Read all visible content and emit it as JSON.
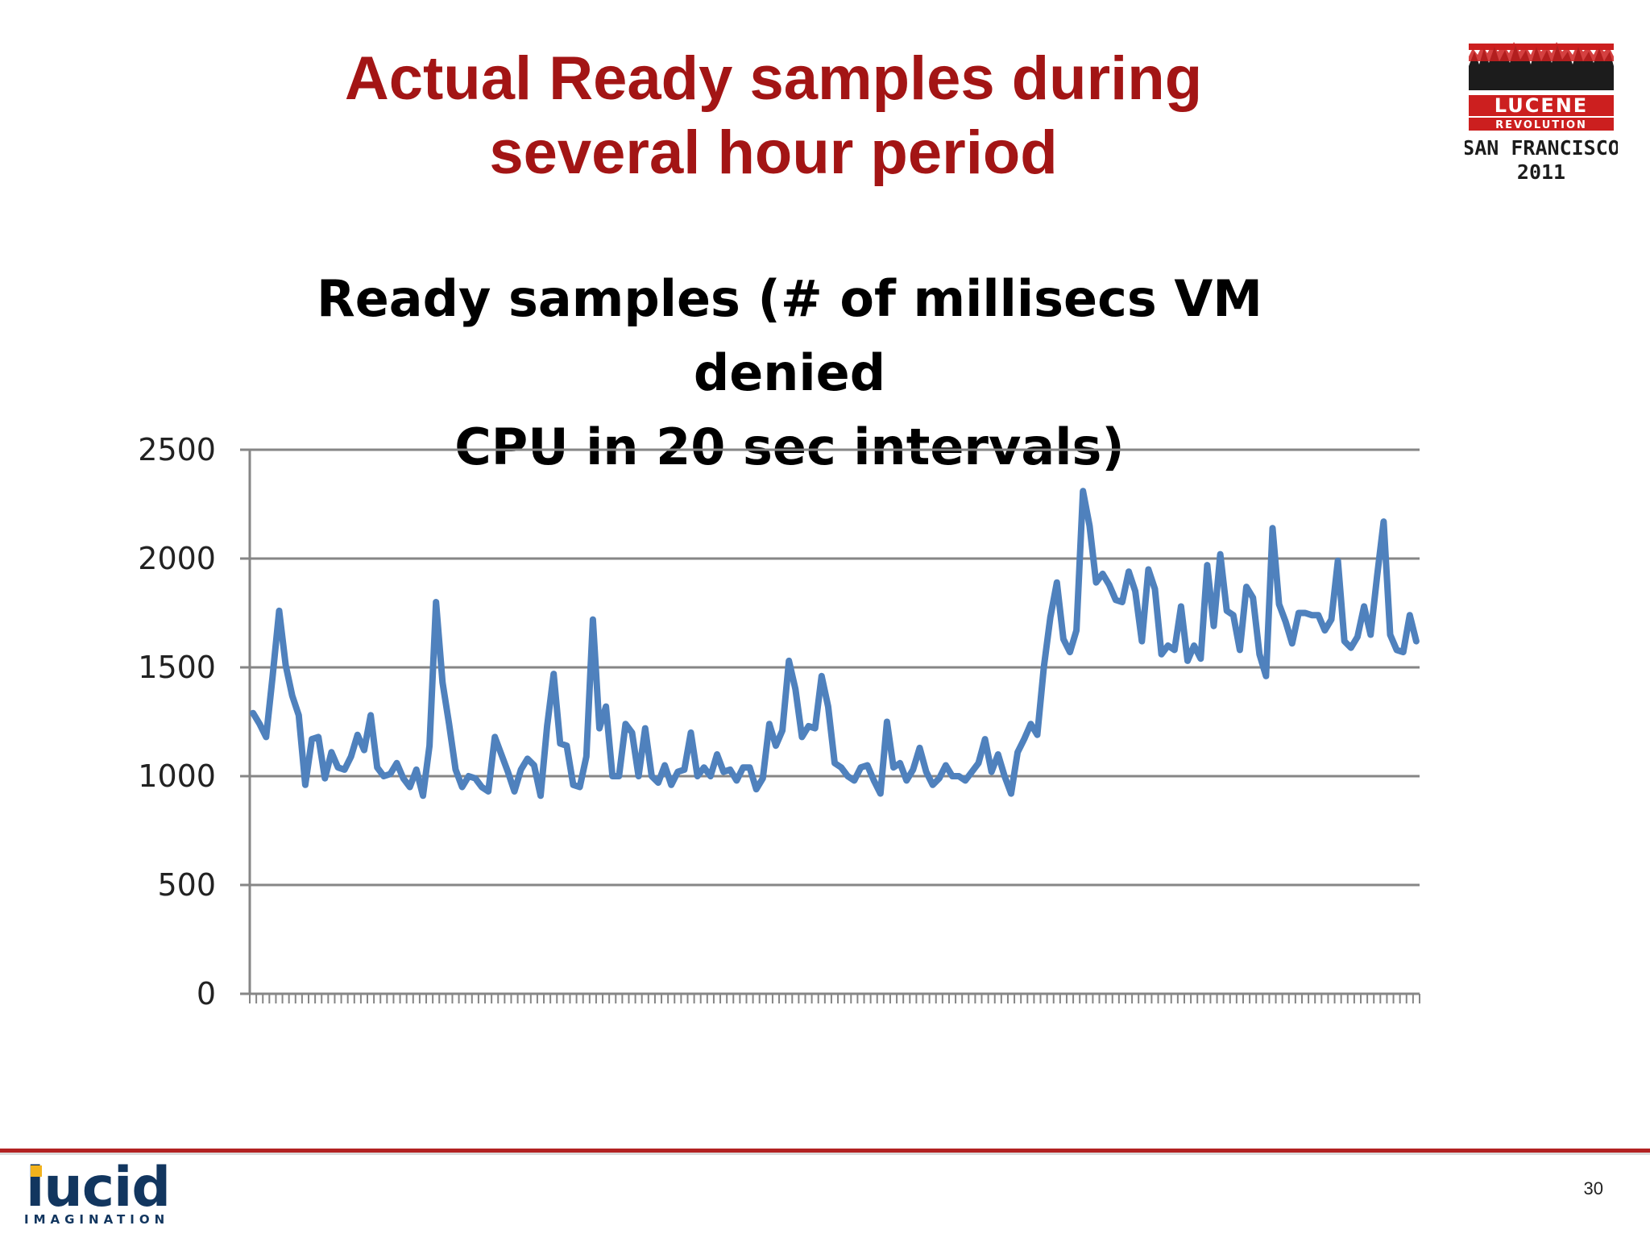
{
  "slide": {
    "title_line1": "Actual Ready samples during",
    "title_line2": "several hour period",
    "page_number": "30"
  },
  "event_logo": {
    "line1": "LUCENE",
    "line2": "REVOLUTION",
    "line3": "SAN FRANCISCO",
    "line4": "2011"
  },
  "company_logo": {
    "name": "lucid",
    "tagline": "IMAGINATION"
  },
  "colors": {
    "title": "#a31515",
    "series": "#4f81bd",
    "footer_rule": "#b22222",
    "logo_blue": "#12365f",
    "logo_gold": "#f2b21c"
  },
  "chart_data": {
    "type": "line",
    "title_line1": "Ready samples (# of millisecs VM denied",
    "title_line2": "CPU in 20 sec intervals)",
    "xlabel": "",
    "ylabel": "",
    "ylim": [
      0,
      2500
    ],
    "yticks": [
      0,
      500,
      1000,
      1500,
      2000,
      2500
    ],
    "grid": true,
    "legend": "none",
    "series": [
      {
        "values": [
          1290,
          1240,
          1180,
          1460,
          1760,
          1510,
          1370,
          1280,
          960,
          1170,
          1180,
          990,
          1110,
          1040,
          1030,
          1090,
          1190,
          1120,
          1280,
          1040,
          1000,
          1010,
          1060,
          990,
          950,
          1030,
          910,
          1140,
          1800,
          1430,
          1240,
          1030,
          950,
          1000,
          990,
          950,
          930,
          1180,
          1100,
          1020,
          930,
          1030,
          1080,
          1050,
          910,
          1230,
          1470,
          1150,
          1140,
          960,
          950,
          1090,
          1720,
          1220,
          1320,
          1000,
          1000,
          1240,
          1200,
          1000,
          1220,
          1000,
          970,
          1050,
          960,
          1020,
          1030,
          1200,
          1000,
          1040,
          1000,
          1100,
          1020,
          1030,
          980,
          1040,
          1040,
          940,
          990,
          1240,
          1140,
          1210,
          1530,
          1400,
          1180,
          1230,
          1220,
          1460,
          1320,
          1060,
          1040,
          1000,
          980,
          1040,
          1050,
          980,
          920,
          1250,
          1040,
          1060,
          980,
          1030,
          1130,
          1020,
          960,
          990,
          1050,
          1000,
          1000,
          980,
          1020,
          1060,
          1170,
          1020,
          1100,
          1000,
          920,
          1110,
          1170,
          1240,
          1190,
          1500,
          1730,
          1890,
          1630,
          1570,
          1670,
          2310,
          2150,
          1890,
          1930,
          1880,
          1810,
          1800,
          1940,
          1850,
          1620,
          1950,
          1860,
          1560,
          1600,
          1580,
          1780,
          1530,
          1600,
          1540,
          1970,
          1690,
          2020,
          1760,
          1740,
          1580,
          1870,
          1820,
          1560,
          1460,
          2140,
          1790,
          1710,
          1610,
          1750,
          1750,
          1740,
          1740,
          1670,
          1720,
          1990,
          1620,
          1590,
          1640,
          1780,
          1650,
          1920,
          2170,
          1650,
          1580,
          1570,
          1740,
          1620
        ]
      }
    ]
  }
}
